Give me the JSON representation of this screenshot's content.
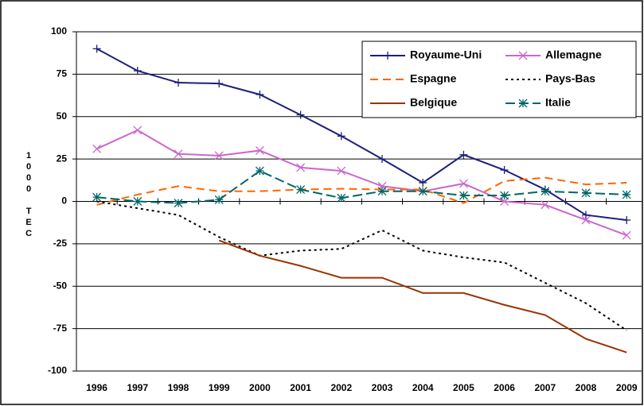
{
  "chart_data": {
    "type": "line",
    "y_label": "1000 TEC",
    "categories": [
      "1996",
      "1997",
      "1998",
      "1999",
      "2000",
      "2001",
      "2002",
      "2003",
      "2004",
      "2005",
      "2006",
      "2007",
      "2008",
      "2009"
    ],
    "ylim": [
      -100,
      100
    ],
    "yticks": [
      -100,
      -75,
      -50,
      -25,
      0,
      25,
      50,
      75,
      100
    ],
    "grid": true,
    "legend_position": "upper right",
    "series": [
      {
        "name": "Royaume-Uni",
        "color": "#1f1f7a",
        "dash": "",
        "marker": "plus",
        "values": [
          90,
          77,
          70,
          69.5,
          63,
          51,
          38.5,
          25,
          11,
          27.5,
          18.5,
          7,
          -8,
          -11
        ]
      },
      {
        "name": "Allemagne",
        "color": "#cc66cc",
        "dash": "",
        "marker": "x",
        "values": [
          31,
          42,
          28,
          27,
          30,
          20,
          18,
          9,
          6,
          10.5,
          0,
          -2,
          -11,
          -20
        ]
      },
      {
        "name": "Espagne",
        "color": "#ff6600",
        "dash": "10 6",
        "marker": "none",
        "values": [
          -2,
          4,
          9,
          6,
          6,
          7,
          7.5,
          7,
          7,
          -1,
          12,
          14,
          10,
          11
        ]
      },
      {
        "name": "Pays-Bas",
        "color": "#000000",
        "dash": "3 4",
        "marker": "none",
        "values": [
          0,
          -4,
          -8,
          -21,
          -32,
          -29,
          -28,
          -17,
          -29,
          -33,
          -36,
          -48,
          -60,
          -76
        ]
      },
      {
        "name": "Belgique",
        "color": "#993300",
        "dash": "",
        "marker": "none",
        "values": [
          null,
          null,
          null,
          -23,
          -32,
          -38,
          -45,
          -45,
          -54,
          -54,
          -61,
          -67,
          -81,
          -89
        ]
      },
      {
        "name": "Italie",
        "color": "#006666",
        "dash": "12 5",
        "marker": "star",
        "values": [
          2.5,
          0,
          -1,
          1,
          18,
          7,
          2,
          6,
          6,
          3.5,
          3.5,
          6,
          5,
          4
        ]
      }
    ]
  }
}
